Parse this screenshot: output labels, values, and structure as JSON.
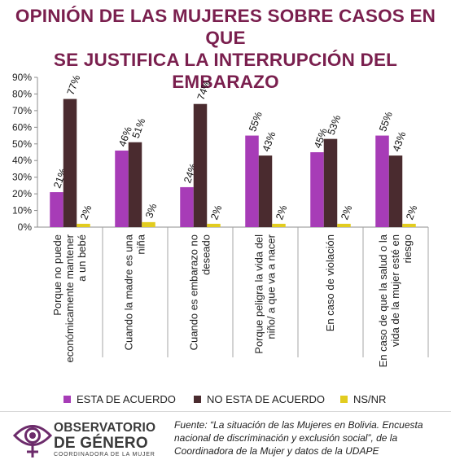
{
  "title_line1": "OPINIÓN DE LAS MUJERES SOBRE CASOS EN QUE",
  "title_line2": "SE JUSTIFICA LA INTERRUPCIÓN DEL EMBARAZO",
  "chart_data": {
    "type": "bar",
    "categories": [
      [
        "Porque no puede",
        "económicamente mantener",
        "a un bebé"
      ],
      [
        "Cuando la madre es una",
        "niña"
      ],
      [
        "Cuando es embarazo no",
        "deseado"
      ],
      [
        "Porque peligra la vida del",
        "niño/ a que va a nacer"
      ],
      [
        "En caso de violación"
      ],
      [
        "En caso de que la salud o la",
        "vida de la mujer esté en",
        "riesgo"
      ]
    ],
    "series": [
      {
        "name": "ESTA DE ACUERDO",
        "values": [
          21,
          46,
          24,
          55,
          45,
          55
        ],
        "color": "#a73cb7"
      },
      {
        "name": "NO ESTA DE ACUERDO",
        "values": [
          77,
          51,
          74,
          43,
          53,
          43
        ],
        "color": "#4a2b2f"
      },
      {
        "name": "NS/NR",
        "values": [
          2,
          3,
          2,
          2,
          2,
          2
        ],
        "color": "#e2cc1f"
      }
    ],
    "yticks": [
      "0%",
      "10%",
      "20%",
      "30%",
      "40%",
      "50%",
      "60%",
      "70%",
      "80%",
      "90%"
    ],
    "ylim": [
      0,
      90
    ],
    "unit": "%",
    "grid": false,
    "legend_position": "bottom"
  },
  "logo": {
    "line1": "OBSERVATORIO",
    "line2": "DE GÉNERO",
    "line3": "COORDINADORA DE LA MUJER",
    "colors": {
      "eye": "#6c2b6b",
      "text": "#3a3a3a"
    }
  },
  "source": "Fuente: “La situación de las Mujeres en Bolivia. Encuesta nacional de discriminación y exclusión social”, de la Coordinadora de la Mujer y datos de la UDAPE"
}
